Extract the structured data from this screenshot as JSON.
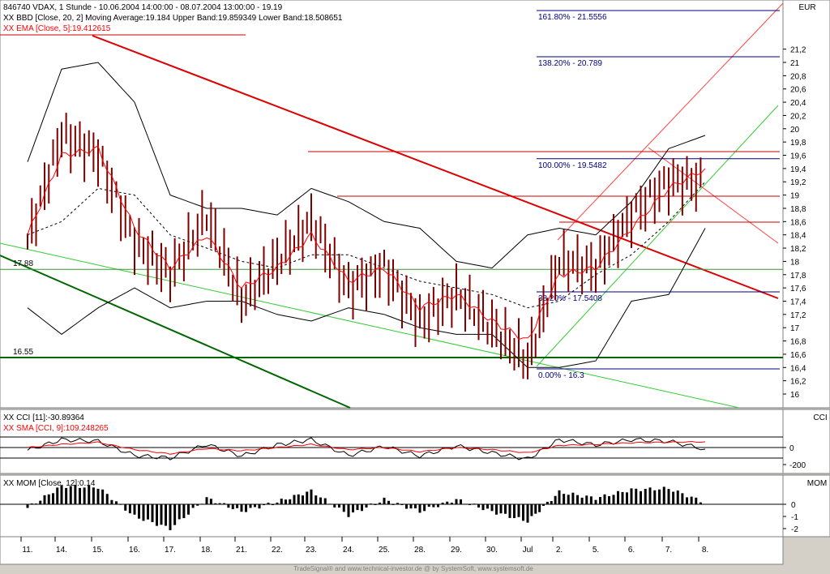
{
  "main_panel": {
    "title": "846740  VDAX, 1 Stunde - 10.06.2004 14:00:00 - 08.07.2004 13:00:00 - 19.19",
    "bbd_label": "XX BBD [Close, 20, 2] Moving Average:19.184 Upper Band:19.859349 Lower Band:18.508651",
    "ema_label": "XX EMA [Close, 5]:19.412615",
    "currency": "EUR",
    "y_ticks": [
      "21,2",
      "21",
      "20,8",
      "20,6",
      "20,4",
      "20,2",
      "20",
      "19,8",
      "19,6",
      "19,4",
      "19,2",
      "19",
      "18,8",
      "18,6",
      "18,4",
      "18,2",
      "18",
      "17,8",
      "17,6",
      "17,4",
      "17,2",
      "17",
      "16,8",
      "16,6",
      "16,4",
      "16,2",
      "16"
    ],
    "level_labels": [
      "17.88",
      "16.55"
    ],
    "fib_labels": [
      "161.80% - 21.5556",
      "138.20% - 20.789",
      "100.00% - 19.5482",
      "38.20% - 17.5408",
      "0.00% - 16.3"
    ]
  },
  "cci_panel": {
    "cci_label": "XX CCI [11]:-30.89364",
    "sma_label": "XX SMA [CCI, 9]:109.248265",
    "unit": "CCI",
    "y_ticks": [
      "0",
      "-200"
    ]
  },
  "mom_panel": {
    "mom_label": "XX MOM [Close, 12]:0.14",
    "unit": "MOM",
    "y_ticks": [
      "0",
      "-1",
      "-2"
    ]
  },
  "x_ticks": [
    "11.",
    "14.",
    "15.",
    "16.",
    "17.",
    "18.",
    "21.",
    "22.",
    "23.",
    "24.",
    "25.",
    "28.",
    "29.",
    "30.",
    "Jul",
    "2.",
    "5.",
    "6.",
    "7.",
    "8."
  ],
  "footer": "TradeSignal® and www.technical-investor.de @ by SystemSoft, www.systemsoft.de",
  "colors": {
    "price": "#800000",
    "ema": "#ff0000",
    "band": "#000000",
    "trend_red": "#dd0000",
    "trend_green": "#33cc33",
    "trend_darkgreen": "#006600",
    "fib": "#000080"
  },
  "chart_data": [
    {
      "type": "line",
      "title": "846740  VDAX, 1 Stunde - 10.06.2004 14:00:00 - 08.07.2004 13:00:00 - 19.19",
      "ylim": [
        15.8,
        21.4
      ],
      "x": [
        "11.",
        "14.",
        "15.",
        "16.",
        "17.",
        "18.",
        "21.",
        "22.",
        "23.",
        "24.",
        "25.",
        "28.",
        "29.",
        "30.",
        "Jul",
        "2.",
        "5.",
        "6.",
        "7.",
        "8."
      ],
      "series": [
        {
          "name": "Close",
          "values": [
            18.3,
            19.9,
            19.6,
            18.3,
            17.8,
            18.7,
            17.4,
            18.0,
            18.6,
            17.6,
            17.9,
            17.1,
            17.5,
            17.0,
            16.5,
            18.0,
            17.9,
            18.7,
            19.2,
            19.2
          ]
        },
        {
          "name": "EMA [Close, 5]",
          "values": [
            18.4,
            19.6,
            19.7,
            18.5,
            17.9,
            18.4,
            17.6,
            17.9,
            18.4,
            17.7,
            17.9,
            17.3,
            17.5,
            17.1,
            16.8,
            17.8,
            17.9,
            18.5,
            19.1,
            19.4
          ]
        },
        {
          "name": "Moving Average",
          "values": [
            18.4,
            18.6,
            19.1,
            19.0,
            18.4,
            18.2,
            18.0,
            17.9,
            18.1,
            18.1,
            17.9,
            17.7,
            17.6,
            17.5,
            17.3,
            17.4,
            17.8,
            18.1,
            18.6,
            19.2
          ]
        },
        {
          "name": "Upper Band",
          "values": [
            19.5,
            20.9,
            21.0,
            20.4,
            19.0,
            18.8,
            18.8,
            18.7,
            19.1,
            18.9,
            18.6,
            18.5,
            18.0,
            17.9,
            18.4,
            18.5,
            18.4,
            18.9,
            19.7,
            19.9
          ]
        },
        {
          "name": "Lower Band",
          "values": [
            17.3,
            16.9,
            17.3,
            17.6,
            17.3,
            17.4,
            17.4,
            17.2,
            17.1,
            17.3,
            17.2,
            17.0,
            16.9,
            16.9,
            16.4,
            16.4,
            16.5,
            17.4,
            17.5,
            18.5
          ]
        }
      ],
      "horizontal_levels": [
        17.88,
        16.55
      ],
      "fibonacci": [
        {
          "label": "161.80% - 21.5556",
          "value": 21.5556
        },
        {
          "label": "138.20% - 20.789",
          "value": 20.789
        },
        {
          "label": "100.00% - 19.5482",
          "value": 19.5482
        },
        {
          "label": "38.20% - 17.5408",
          "value": 17.5408
        },
        {
          "label": "0.00% - 16.3",
          "value": 16.3
        }
      ]
    },
    {
      "type": "line",
      "title": "XX CCI [11]:-30.89364",
      "series": [
        {
          "name": "CCI [11]",
          "values": [
            -50,
            150,
            120,
            -150,
            -200,
            60,
            -160,
            50,
            150,
            -150,
            20,
            -160,
            30,
            -100,
            -220,
            150,
            50,
            150,
            120,
            -30
          ]
        },
        {
          "name": "SMA [CCI, 9]",
          "values": [
            0,
            60,
            100,
            -40,
            -120,
            -20,
            -60,
            0,
            60,
            -40,
            0,
            -80,
            0,
            -40,
            -100,
            40,
            60,
            90,
            100,
            109
          ]
        }
      ]
    },
    {
      "type": "bar",
      "title": "XX MOM [Close, 12]:0.14",
      "categories": [
        "11.",
        "14.",
        "15.",
        "16.",
        "17.",
        "18.",
        "21.",
        "22.",
        "23.",
        "24.",
        "25.",
        "28.",
        "29.",
        "30.",
        "Jul",
        "2.",
        "5.",
        "6.",
        "7.",
        "8."
      ],
      "values": [
        -0.3,
        1.5,
        1.4,
        -1.0,
        -2.0,
        0.5,
        -0.6,
        0.2,
        1.1,
        -0.9,
        0.4,
        -0.6,
        0.4,
        -0.6,
        -1.4,
        1.0,
        0.5,
        1.2,
        1.3,
        0.14
      ]
    }
  ]
}
